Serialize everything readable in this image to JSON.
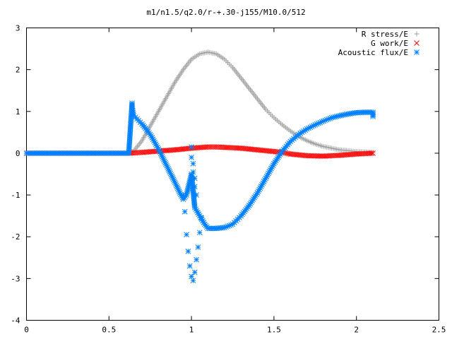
{
  "chart_data": {
    "type": "scatter",
    "title": "m1/n1.5/q2.0/r-+.30-j155/M10.0/512",
    "xlabel": "",
    "ylabel": "",
    "xlim": [
      0,
      2.5
    ],
    "ylim": [
      -4,
      3
    ],
    "xticks": [
      "0",
      "0.5",
      "1",
      "1.5",
      "2",
      "2.5"
    ],
    "yticks": [
      "3",
      "2",
      "1",
      "0",
      "-1",
      "-2",
      "-3",
      "-4"
    ],
    "grid": false,
    "legend_position": "top-right",
    "series": [
      {
        "name": "R stress/E",
        "marker": "+",
        "color": "#a0a0a0",
        "x": [
          0.0,
          0.3,
          0.62,
          0.65,
          0.7,
          0.75,
          0.8,
          0.85,
          0.9,
          0.95,
          1.0,
          1.05,
          1.1,
          1.15,
          1.2,
          1.25,
          1.3,
          1.35,
          1.4,
          1.45,
          1.5,
          1.55,
          1.6,
          1.65,
          1.7,
          1.75,
          1.8,
          1.85,
          1.9,
          1.95,
          2.0,
          2.05,
          2.1
        ],
        "y": [
          0.0,
          0.0,
          0.0,
          0.05,
          0.3,
          0.65,
          1.0,
          1.35,
          1.7,
          2.0,
          2.25,
          2.38,
          2.42,
          2.38,
          2.25,
          2.05,
          1.8,
          1.55,
          1.3,
          1.05,
          0.85,
          0.68,
          0.53,
          0.4,
          0.3,
          0.22,
          0.16,
          0.12,
          0.08,
          0.06,
          0.04,
          0.03,
          0.02
        ]
      },
      {
        "name": "G work/E",
        "marker": "x",
        "color": "#ff0000",
        "x": [
          0.0,
          0.3,
          0.62,
          0.7,
          0.8,
          0.9,
          1.0,
          1.1,
          1.15,
          1.2,
          1.3,
          1.4,
          1.5,
          1.55,
          1.6,
          1.7,
          1.8,
          1.9,
          2.0,
          2.1
        ],
        "y": [
          0.0,
          0.0,
          0.0,
          0.02,
          0.05,
          0.08,
          0.12,
          0.15,
          0.15,
          0.14,
          0.12,
          0.08,
          0.04,
          0.02,
          -0.02,
          -0.06,
          -0.07,
          -0.05,
          -0.02,
          0.0
        ]
      },
      {
        "name": "Acoustic flux/E",
        "marker": "*",
        "color": "#0080ff",
        "x": [
          0.0,
          0.3,
          0.62,
          0.64,
          0.64,
          0.65,
          0.7,
          0.75,
          0.8,
          0.85,
          0.9,
          0.93,
          0.95,
          0.97,
          1.0,
          1.02,
          1.05,
          1.08,
          1.1,
          1.12,
          1.15,
          1.2,
          1.25,
          1.3,
          1.35,
          1.4,
          1.45,
          1.5,
          1.55,
          1.6,
          1.65,
          1.7,
          1.75,
          1.8,
          1.85,
          1.9,
          1.95,
          2.0,
          2.05,
          2.1,
          2.1
        ],
        "y": [
          0.0,
          0.0,
          0.0,
          1.2,
          1.1,
          0.9,
          0.7,
          0.45,
          0.1,
          -0.3,
          -0.7,
          -0.95,
          -1.1,
          -1.0,
          -0.5,
          -1.3,
          -1.5,
          -1.7,
          -1.8,
          -1.8,
          -1.8,
          -1.78,
          -1.7,
          -1.5,
          -1.25,
          -0.95,
          -0.6,
          -0.25,
          0.05,
          0.28,
          0.45,
          0.58,
          0.68,
          0.77,
          0.85,
          0.9,
          0.94,
          0.97,
          0.98,
          0.98,
          0.88
        ]
      },
      {
        "name": "",
        "legend": false,
        "marker": "*",
        "color": "#0080ff",
        "x": [
          0.95,
          0.96,
          0.97,
          0.98,
          0.99,
          1.0,
          1.01,
          1.02,
          1.03,
          1.04,
          1.05,
          1.06
        ],
        "y": [
          -1.0,
          -1.4,
          -1.95,
          -2.35,
          -2.7,
          -2.95,
          -3.05,
          -2.85,
          -2.55,
          -2.25,
          -1.9,
          -1.55
        ]
      },
      {
        "name": "",
        "legend": false,
        "marker": "*",
        "color": "#0080ff",
        "x": [
          1.0,
          1.0,
          1.01,
          1.01,
          1.02,
          1.02,
          1.03
        ],
        "y": [
          0.15,
          -0.1,
          -0.25,
          -0.45,
          -0.6,
          -0.8,
          -1.0
        ]
      }
    ]
  }
}
